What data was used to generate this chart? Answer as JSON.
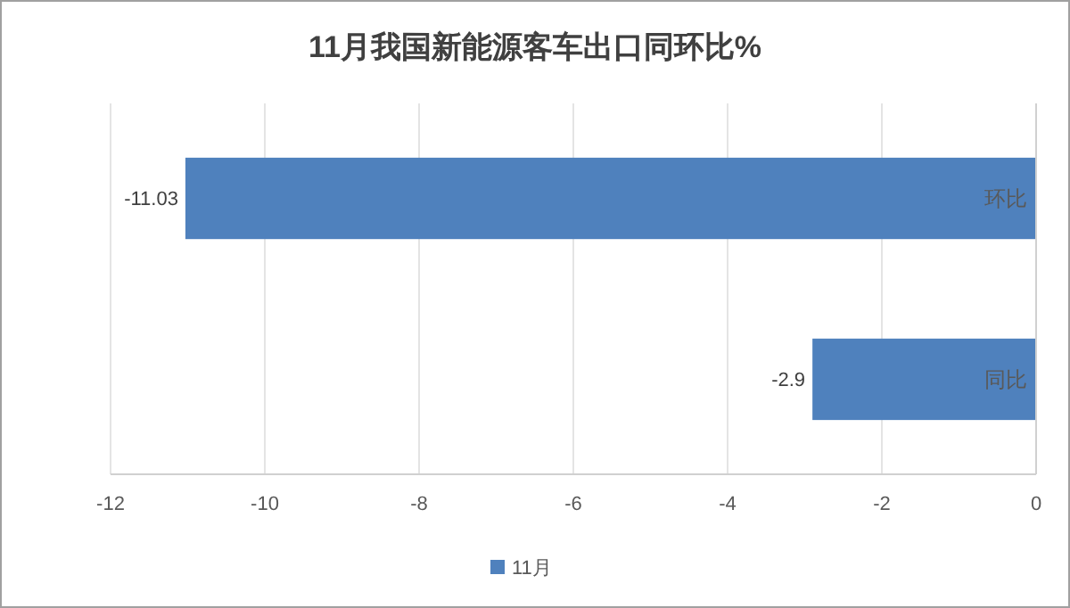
{
  "chart_data": {
    "type": "bar",
    "orientation": "horizontal",
    "title": "11月我国新能源客车出口同环比%",
    "categories": [
      "环比",
      "同比"
    ],
    "series": [
      {
        "name": "11月",
        "color": "#4f81bd",
        "values": [
          -11.03,
          -2.9
        ]
      }
    ],
    "xlim": [
      -12,
      0
    ],
    "xticks": [
      -12,
      -10,
      -8,
      -6,
      -4,
      -2,
      0
    ],
    "data_labels": true,
    "legend": "bottom",
    "grid": "x"
  }
}
